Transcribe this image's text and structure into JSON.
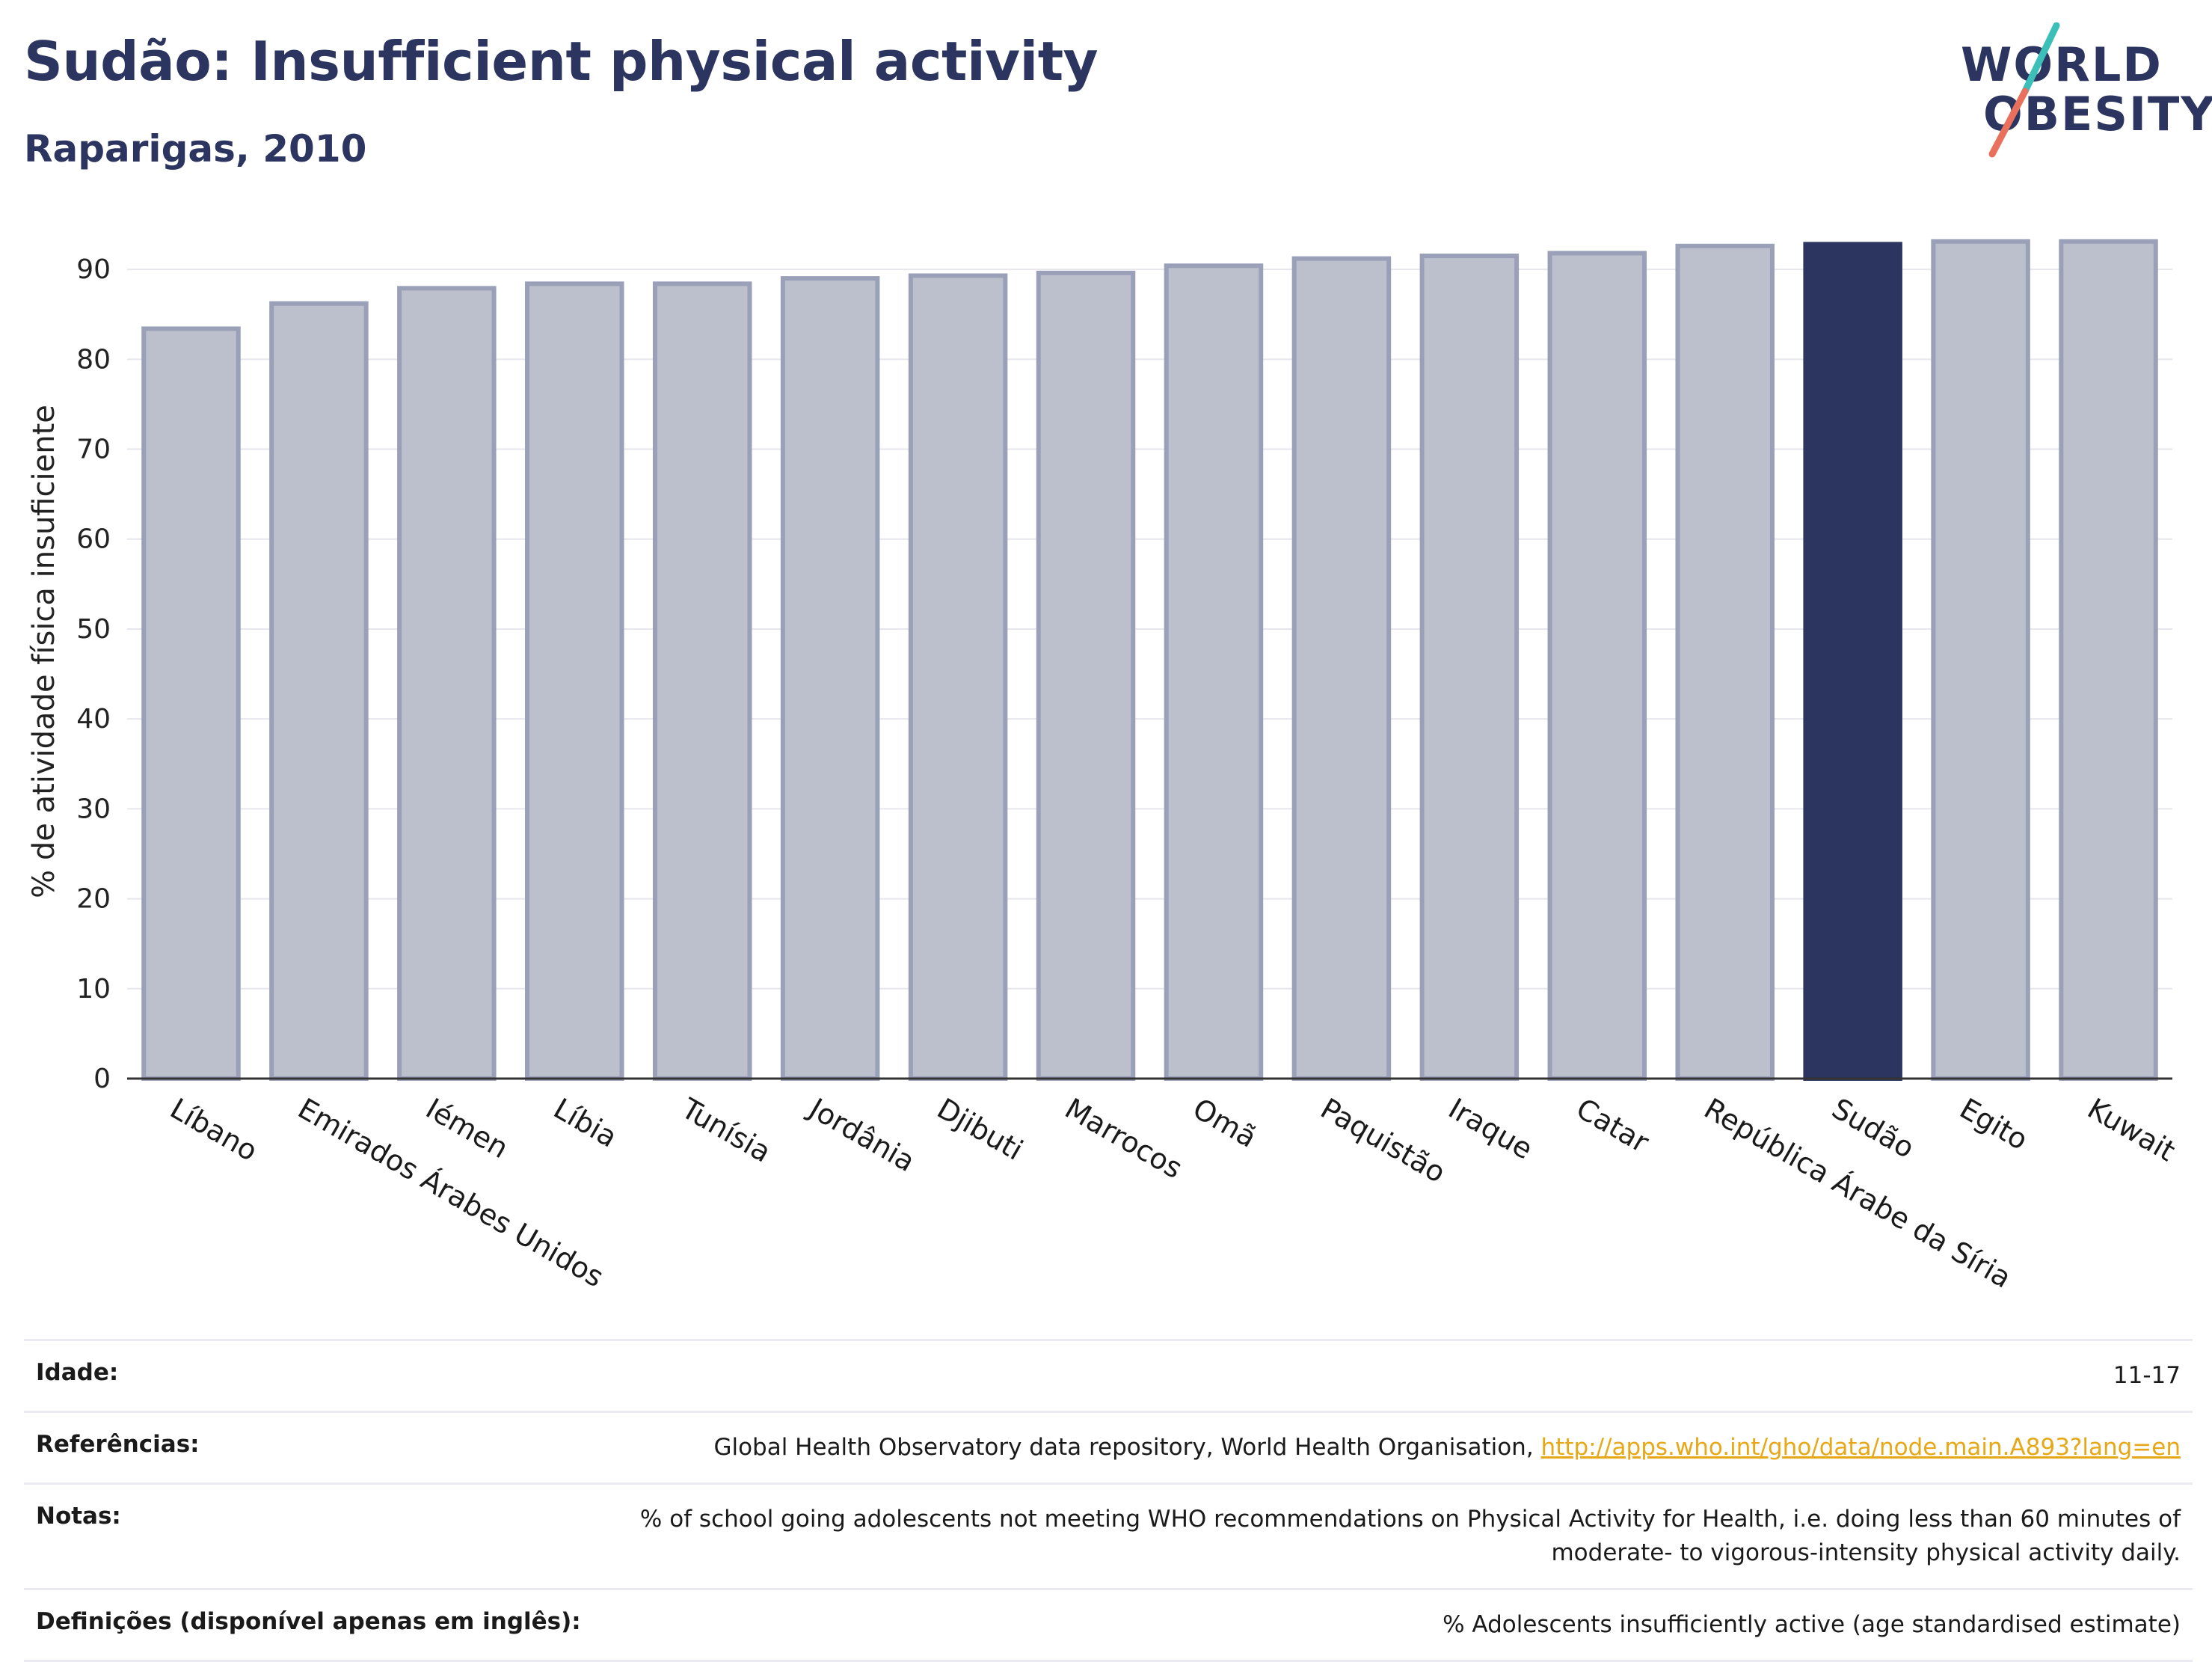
{
  "header": {
    "title": "Sudão: Insufficient physical activity",
    "subtitle": "Raparigas, 2010"
  },
  "logo": {
    "line1": "WORLD",
    "line2": "OBESITY"
  },
  "colors": {
    "bar": "#bcc0cc",
    "bar_stroke": "#9aa0b8",
    "highlight": "#2b3560",
    "text_dark": "#2b3560",
    "link": "#e6a817",
    "logo_teal": "#3bbfb8",
    "logo_coral": "#e8705c"
  },
  "chart_data": {
    "type": "bar",
    "categories": [
      "Líbano",
      "Emirados Árabes Unidos",
      "Iémen",
      "Líbia",
      "Tunísia",
      "Jordânia",
      "Djibuti",
      "Marrocos",
      "Omã",
      "Paquistão",
      "Iraque",
      "Catar",
      "República Árabe da Síria",
      "Sudão",
      "Egito",
      "Kuwait"
    ],
    "values": [
      83.4,
      86.2,
      87.9,
      88.4,
      88.4,
      89.0,
      89.3,
      89.6,
      90.4,
      91.2,
      91.5,
      91.8,
      92.6,
      92.8,
      93.1,
      93.1
    ],
    "highlight": "Sudão",
    "ylabel": "% de atividade física insuficiente",
    "ylim": [
      0,
      95
    ],
    "yticks": [
      0,
      10,
      20,
      30,
      40,
      50,
      60,
      70,
      80,
      90
    ],
    "grid": true
  },
  "info": {
    "age_label": "Idade:",
    "age_value": "11-17",
    "refs_label": "Referências:",
    "refs_text": "Global Health Observatory data repository, World Health Organisation, ",
    "refs_link": "http://apps.who.int/gho/data/node.main.A893?lang=en",
    "notes_label": "Notas:",
    "notes_value": "% of school going adolescents not meeting WHO recommendations on Physical Activity for Health, i.e. doing less than 60 minutes of moderate- to vigorous-intensity physical activity daily.",
    "defs_label": "Definições (disponível apenas em inglês):",
    "defs_value": "% Adolescents insufficiently active (age standardised estimate)"
  }
}
